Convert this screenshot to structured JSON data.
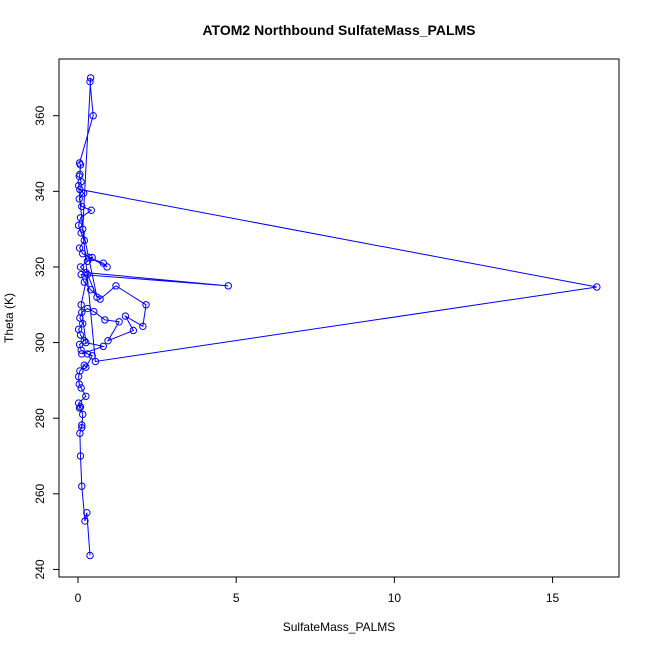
{
  "chart_data": {
    "type": "line",
    "title": "ATOM2 Northbound SulfateMass_PALMS",
    "xlabel": "SulfateMass_PALMS",
    "ylabel": "Theta (K)",
    "xlim": [
      -0.6,
      17.1
    ],
    "ylim": [
      238,
      375
    ],
    "x_ticks": [
      0,
      5,
      10,
      15
    ],
    "y_ticks": [
      240,
      260,
      280,
      300,
      320,
      340,
      360
    ],
    "grid": false,
    "legend": "none",
    "marker": "open-circle",
    "series": [
      {
        "color": "#0000ff",
        "points": [
          [
            0.38,
            243.7
          ],
          [
            0.28,
            255.0
          ],
          [
            0.22,
            252.8
          ],
          [
            0.12,
            262.0
          ],
          [
            0.08,
            270.0
          ],
          [
            0.06,
            276.0
          ],
          [
            0.12,
            278.2
          ],
          [
            0.12,
            277.5
          ],
          [
            0.15,
            281.0
          ],
          [
            0.08,
            283.0
          ],
          [
            0.05,
            282.7
          ],
          [
            0.02,
            284.0
          ],
          [
            0.25,
            285.8
          ],
          [
            0.1,
            288.0
          ],
          [
            0.04,
            289.0
          ],
          [
            0.02,
            291.0
          ],
          [
            0.06,
            292.5
          ],
          [
            0.2,
            294.0
          ],
          [
            0.25,
            293.5
          ],
          [
            0.45,
            296.5
          ],
          [
            0.3,
            297.0
          ],
          [
            0.1,
            298.0
          ],
          [
            0.05,
            299.5
          ],
          [
            0.2,
            300.5
          ],
          [
            0.08,
            302.0
          ],
          [
            0.02,
            303.5
          ],
          [
            0.15,
            305.0
          ],
          [
            0.06,
            306.5
          ],
          [
            0.12,
            308.0
          ],
          [
            0.3,
            309.0
          ],
          [
            0.5,
            308.2
          ],
          [
            0.85,
            306.0
          ],
          [
            1.3,
            305.5
          ],
          [
            0.95,
            300.5
          ],
          [
            1.75,
            303.2
          ],
          [
            1.5,
            307.0
          ],
          [
            2.05,
            304.3
          ],
          [
            2.15,
            310.0
          ],
          [
            1.2,
            315.0
          ],
          [
            0.7,
            311.5
          ],
          [
            0.4,
            314.0
          ],
          [
            0.2,
            316.0
          ],
          [
            0.1,
            318.0
          ],
          [
            4.75,
            315.0
          ],
          [
            0.25,
            318.5
          ],
          [
            0.08,
            320.0
          ],
          [
            0.3,
            321.5
          ],
          [
            0.45,
            322.5
          ],
          [
            0.35,
            322.5
          ],
          [
            0.8,
            321.0
          ],
          [
            0.92,
            320.0
          ],
          [
            0.15,
            323.5
          ],
          [
            0.05,
            325.0
          ],
          [
            0.2,
            327.0
          ],
          [
            0.1,
            329.0
          ],
          [
            0.02,
            331.0
          ],
          [
            0.08,
            333.0
          ],
          [
            0.42,
            335.0
          ],
          [
            0.12,
            336.0
          ],
          [
            0.04,
            338.0
          ],
          [
            0.18,
            339.5
          ],
          [
            0.06,
            340.5
          ],
          [
            16.4,
            314.7
          ],
          [
            0.55,
            295.0
          ],
          [
            0.02,
            341.5
          ],
          [
            0.1,
            342.5
          ],
          [
            0.04,
            344.0
          ],
          [
            0.06,
            344.5
          ],
          [
            0.08,
            347.0
          ],
          [
            0.05,
            347.5
          ],
          [
            0.48,
            360.0
          ],
          [
            0.38,
            369.0
          ],
          [
            0.4,
            370.0
          ],
          [
            0.15,
            330.0
          ],
          [
            0.6,
            312.0
          ],
          [
            0.3,
            318.0
          ],
          [
            0.1,
            310.0
          ],
          [
            0.25,
            300.0
          ],
          [
            0.8,
            299.0
          ],
          [
            0.12,
            297.0
          ]
        ]
      }
    ]
  }
}
